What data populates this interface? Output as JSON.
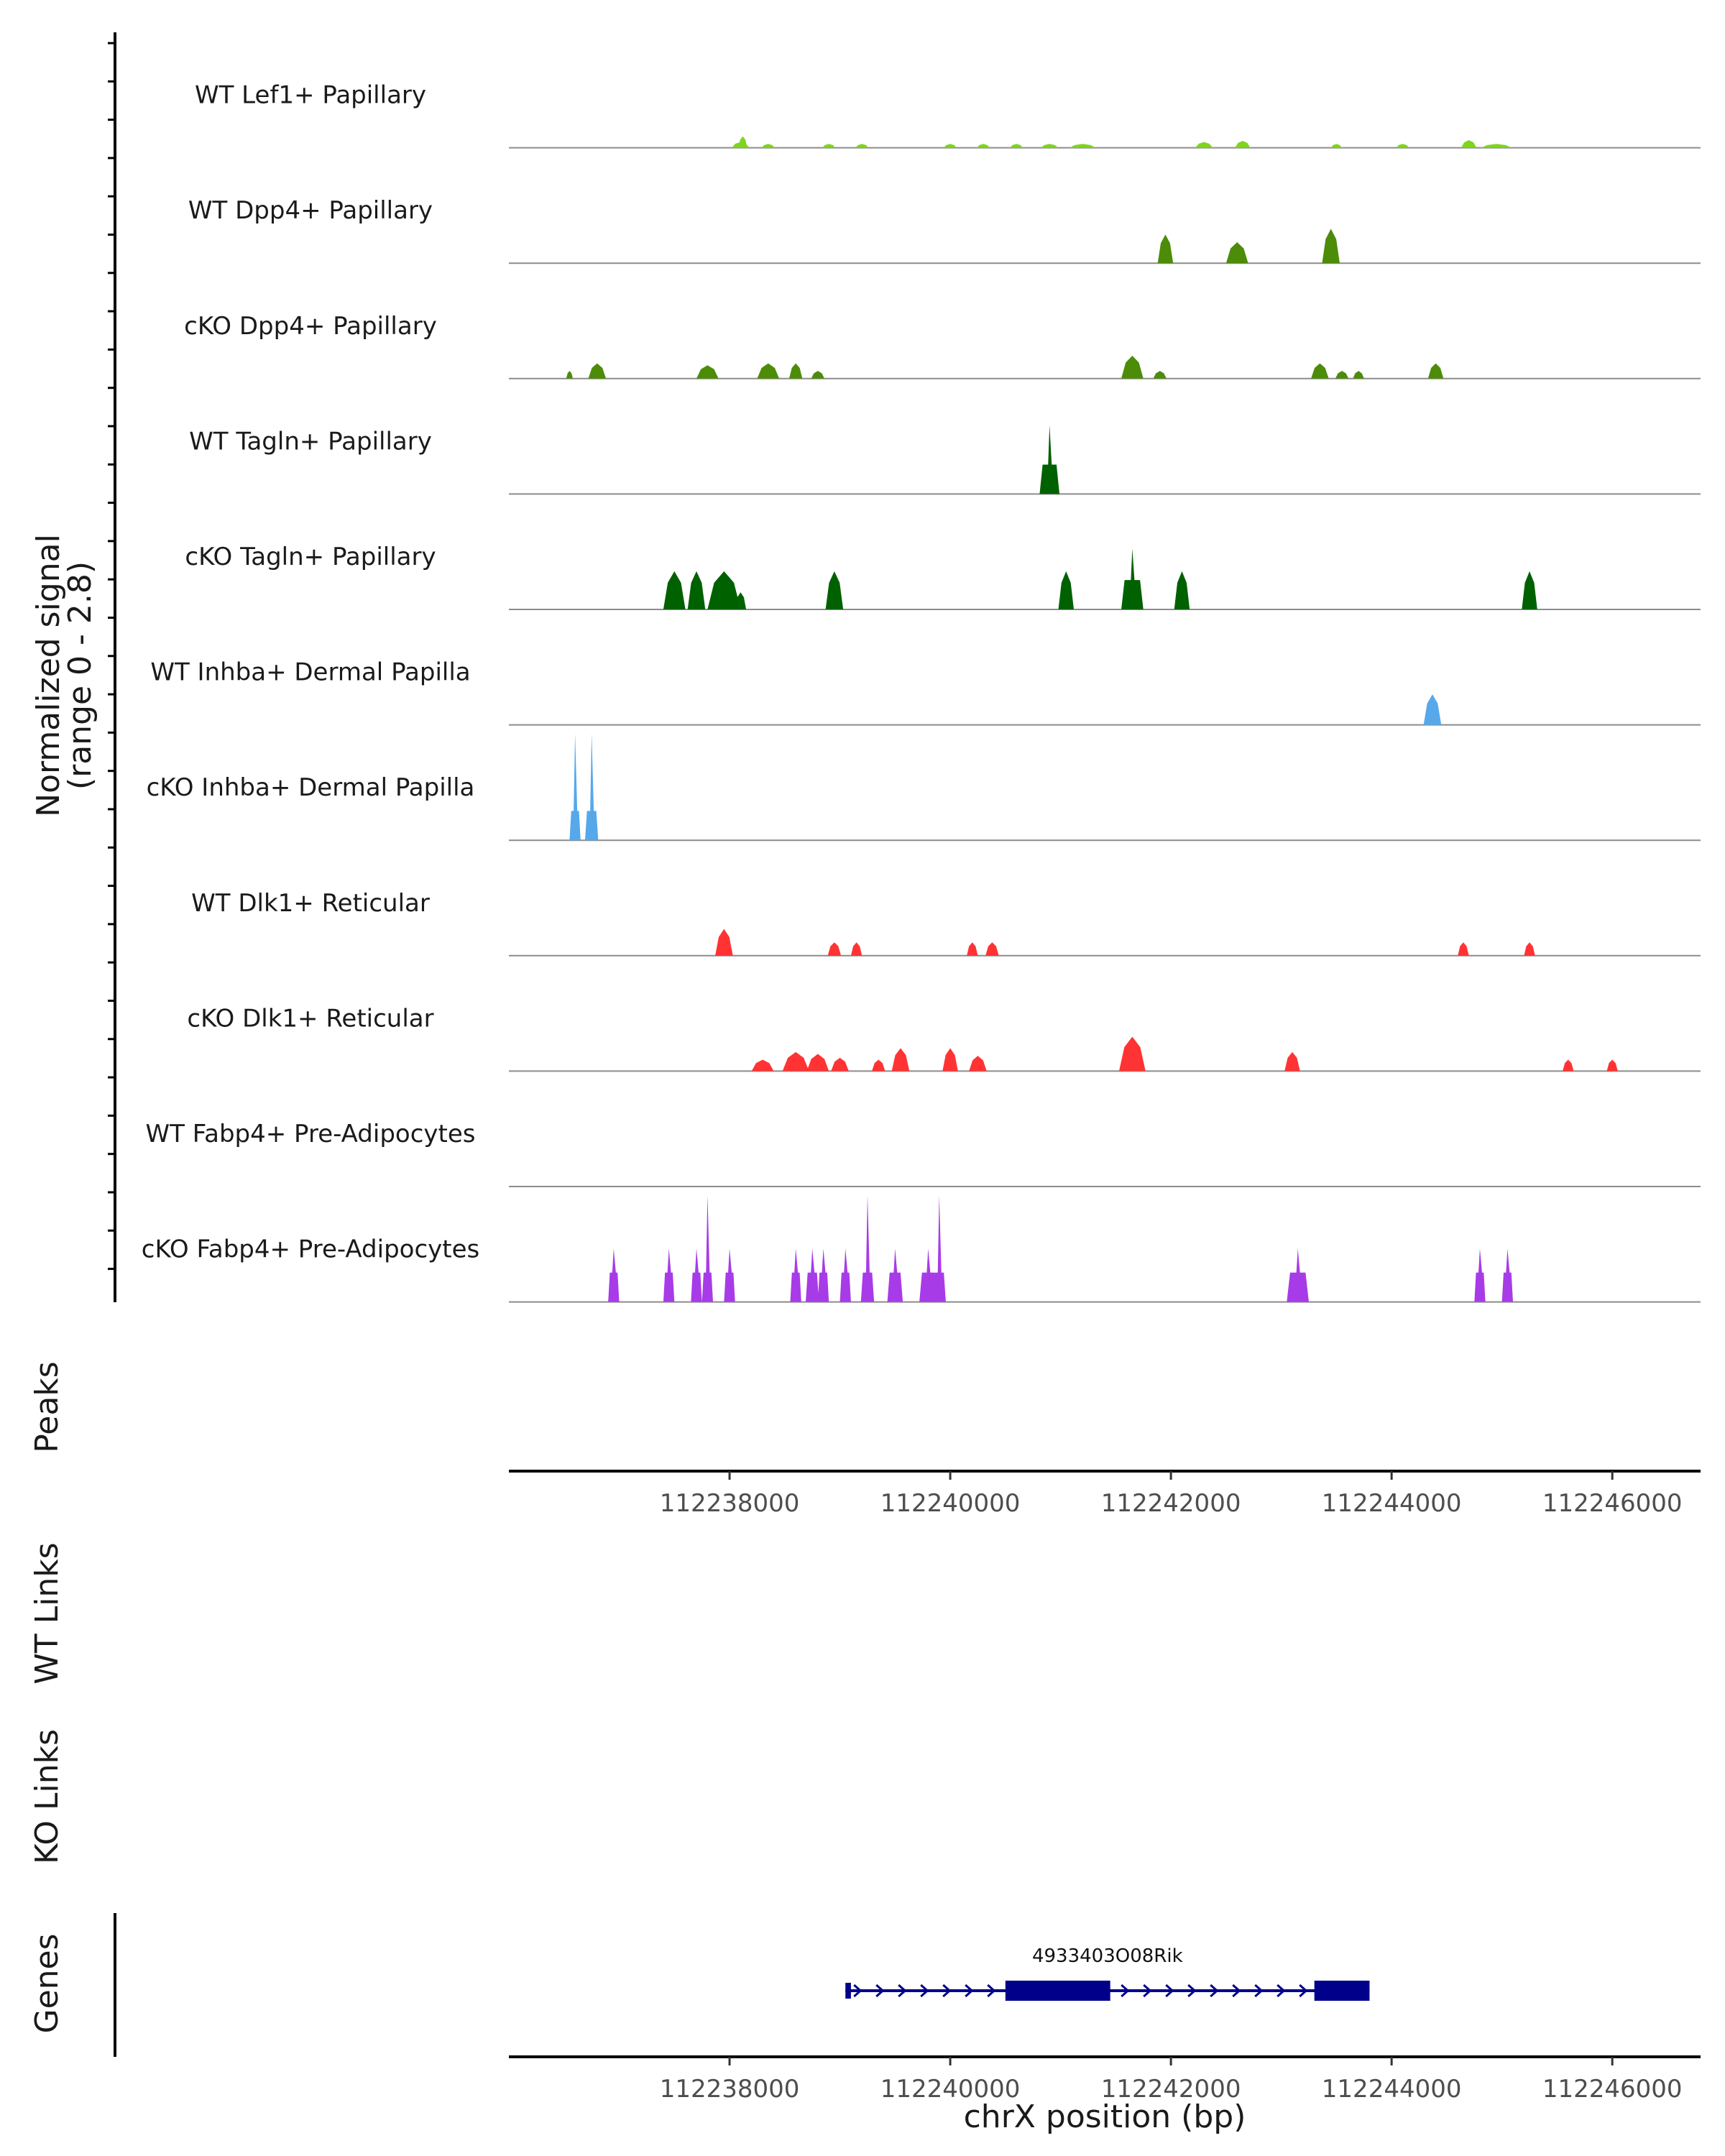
{
  "chart_data": {
    "type": "area",
    "chromosome": "chrX",
    "xlim": [
      112236000,
      112246800
    ],
    "signal_range": [
      0,
      2.8
    ],
    "y_axis_title_line1": "Normalized signal",
    "y_axis_title_line2": "(range 0 - 2.8)",
    "x_axis_title": "chrX position (bp)",
    "x_ticks": [
      112238000,
      112240000,
      112242000,
      112244000,
      112246000
    ],
    "x_tick_labels": [
      "112238000",
      "112240000",
      "112242000",
      "112244000",
      "112246000"
    ],
    "section_labels": {
      "peaks": "Peaks",
      "wt_links": "WT Links",
      "ko_links": "KO Links",
      "genes": "Genes"
    },
    "tracks": [
      {
        "name": "WT Lef1+ Papillary",
        "color": "#7FD41E",
        "peaks": [
          [
            112238100,
            0.08,
            0.15
          ],
          [
            112238120,
            0.04,
            0.3
          ],
          [
            112238350,
            0.06,
            0.1
          ],
          [
            112238900,
            0.06,
            0.1
          ],
          [
            112239200,
            0.06,
            0.1
          ],
          [
            112240000,
            0.06,
            0.1
          ],
          [
            112240300,
            0.06,
            0.1
          ],
          [
            112240600,
            0.06,
            0.1
          ],
          [
            112240900,
            0.08,
            0.1
          ],
          [
            112241200,
            0.12,
            0.1
          ],
          [
            112242300,
            0.08,
            0.15
          ],
          [
            112242650,
            0.07,
            0.18
          ],
          [
            112243500,
            0.05,
            0.1
          ],
          [
            112244100,
            0.06,
            0.1
          ],
          [
            112244700,
            0.07,
            0.2
          ],
          [
            112244950,
            0.14,
            0.1
          ]
        ]
      },
      {
        "name": "WT Dpp4+ Papillary",
        "color": "#4C8C09",
        "peaks": [
          [
            112241950,
            0.07,
            0.75
          ],
          [
            112242600,
            0.1,
            0.55
          ],
          [
            112243450,
            0.08,
            0.9
          ]
        ]
      },
      {
        "name": "cKO Dpp4+ Papillary",
        "color": "#4C8C09",
        "peaks": [
          [
            112236550,
            0.03,
            0.2
          ],
          [
            112236800,
            0.08,
            0.4
          ],
          [
            112237800,
            0.1,
            0.35
          ],
          [
            112238350,
            0.1,
            0.4
          ],
          [
            112238600,
            0.06,
            0.4
          ],
          [
            112238800,
            0.06,
            0.2
          ],
          [
            112241650,
            0.1,
            0.6
          ],
          [
            112241900,
            0.06,
            0.2
          ],
          [
            112243350,
            0.08,
            0.4
          ],
          [
            112243550,
            0.06,
            0.2
          ],
          [
            112243700,
            0.05,
            0.2
          ],
          [
            112244400,
            0.07,
            0.4
          ]
        ]
      },
      {
        "name": "WT Tagln+ Papillary",
        "color": "#006100",
        "peaks": [
          [
            112240900,
            0.09,
            1.8
          ]
        ]
      },
      {
        "name": "cKO Tagln+ Papillary",
        "color": "#006100",
        "peaks": [
          [
            112237500,
            0.1,
            1.0
          ],
          [
            112237700,
            0.08,
            1.0
          ],
          [
            112237950,
            0.15,
            1.0
          ],
          [
            112238100,
            0.05,
            0.45
          ],
          [
            112238950,
            0.08,
            1.0
          ],
          [
            112241050,
            0.07,
            1.0
          ],
          [
            112241650,
            0.1,
            1.6
          ],
          [
            112242100,
            0.07,
            1.0
          ],
          [
            112245250,
            0.07,
            1.0
          ]
        ]
      },
      {
        "name": "WT Inhba+ Dermal Papilla",
        "color": "#56A8EB",
        "peaks": [
          [
            112244370,
            0.08,
            0.8
          ]
        ]
      },
      {
        "name": "cKO Inhba+ Dermal Papilla",
        "color": "#56A8EB",
        "peaks": [
          [
            112236600,
            0.05,
            2.8
          ],
          [
            112236750,
            0.06,
            2.8
          ]
        ]
      },
      {
        "name": "WT Dlk1+ Reticular",
        "color": "#FF3333",
        "peaks": [
          [
            112237950,
            0.08,
            0.7
          ],
          [
            112238950,
            0.06,
            0.35
          ],
          [
            112239150,
            0.05,
            0.35
          ],
          [
            112240200,
            0.05,
            0.35
          ],
          [
            112240380,
            0.06,
            0.35
          ],
          [
            112244650,
            0.05,
            0.35
          ],
          [
            112245250,
            0.05,
            0.35
          ]
        ]
      },
      {
        "name": "cKO Dlk1+ Reticular",
        "color": "#FF3333",
        "peaks": [
          [
            112238300,
            0.1,
            0.3
          ],
          [
            112238600,
            0.12,
            0.5
          ],
          [
            112238800,
            0.1,
            0.45
          ],
          [
            112239000,
            0.08,
            0.35
          ],
          [
            112239350,
            0.06,
            0.3
          ],
          [
            112239550,
            0.08,
            0.6
          ],
          [
            112240000,
            0.07,
            0.6
          ],
          [
            112240250,
            0.08,
            0.4
          ],
          [
            112241650,
            0.12,
            0.9
          ],
          [
            112243100,
            0.07,
            0.5
          ],
          [
            112245600,
            0.05,
            0.3
          ],
          [
            112246000,
            0.05,
            0.3
          ]
        ]
      },
      {
        "name": "WT Fabp4+ Pre-Adipocytes",
        "color": "#A83BE8",
        "peaks": []
      },
      {
        "name": "cKO Fabp4+ Pre-Adipocytes",
        "color": "#A83BE8",
        "peaks": [
          [
            112236950,
            0.05,
            1.4
          ],
          [
            112237450,
            0.05,
            1.4
          ],
          [
            112237700,
            0.05,
            1.4
          ],
          [
            112237800,
            0.05,
            2.8
          ],
          [
            112238000,
            0.05,
            1.4
          ],
          [
            112238600,
            0.05,
            1.4
          ],
          [
            112238750,
            0.06,
            1.4
          ],
          [
            112238850,
            0.05,
            1.4
          ],
          [
            112239050,
            0.05,
            1.4
          ],
          [
            112239250,
            0.06,
            2.8
          ],
          [
            112239500,
            0.07,
            1.4
          ],
          [
            112239800,
            0.08,
            1.4
          ],
          [
            112239900,
            0.06,
            2.8
          ],
          [
            112243150,
            0.1,
            1.4
          ],
          [
            112244800,
            0.05,
            1.4
          ],
          [
            112245050,
            0.05,
            1.4
          ]
        ]
      }
    ],
    "gene": {
      "name": "4933403O08Rik",
      "start": 112239050,
      "end": 112243800,
      "strand": "+",
      "exons": [
        [
          112239050,
          112239100
        ],
        [
          112240500,
          112241450
        ],
        [
          112243300,
          112243800
        ]
      ]
    }
  }
}
